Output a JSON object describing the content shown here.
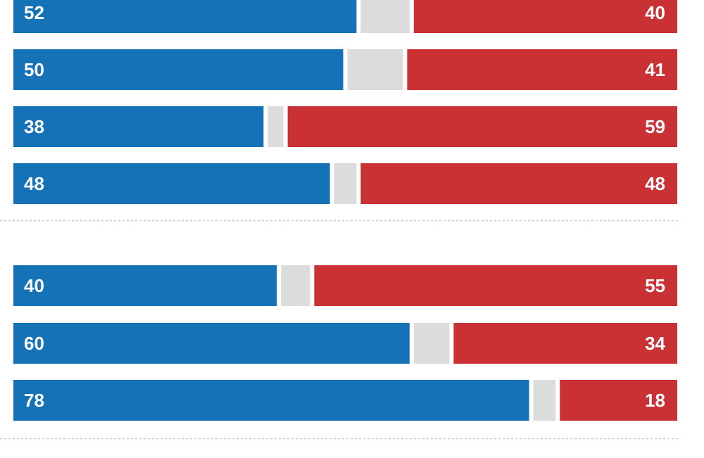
{
  "chart_data": {
    "type": "bar",
    "stacked": true,
    "orientation": "horizontal",
    "colors": {
      "left": "#1572b6",
      "middle": "#dcdcdc",
      "right": "#c93135"
    },
    "groups": [
      {
        "rows": [
          {
            "left": 52,
            "right": 40
          },
          {
            "left": 50,
            "right": 41
          },
          {
            "left": 38,
            "right": 59
          },
          {
            "left": 48,
            "right": 48
          }
        ]
      },
      {
        "rows": [
          {
            "left": 40,
            "right": 55
          },
          {
            "left": 60,
            "right": 34
          },
          {
            "left": 78,
            "right": 18
          }
        ]
      }
    ]
  }
}
